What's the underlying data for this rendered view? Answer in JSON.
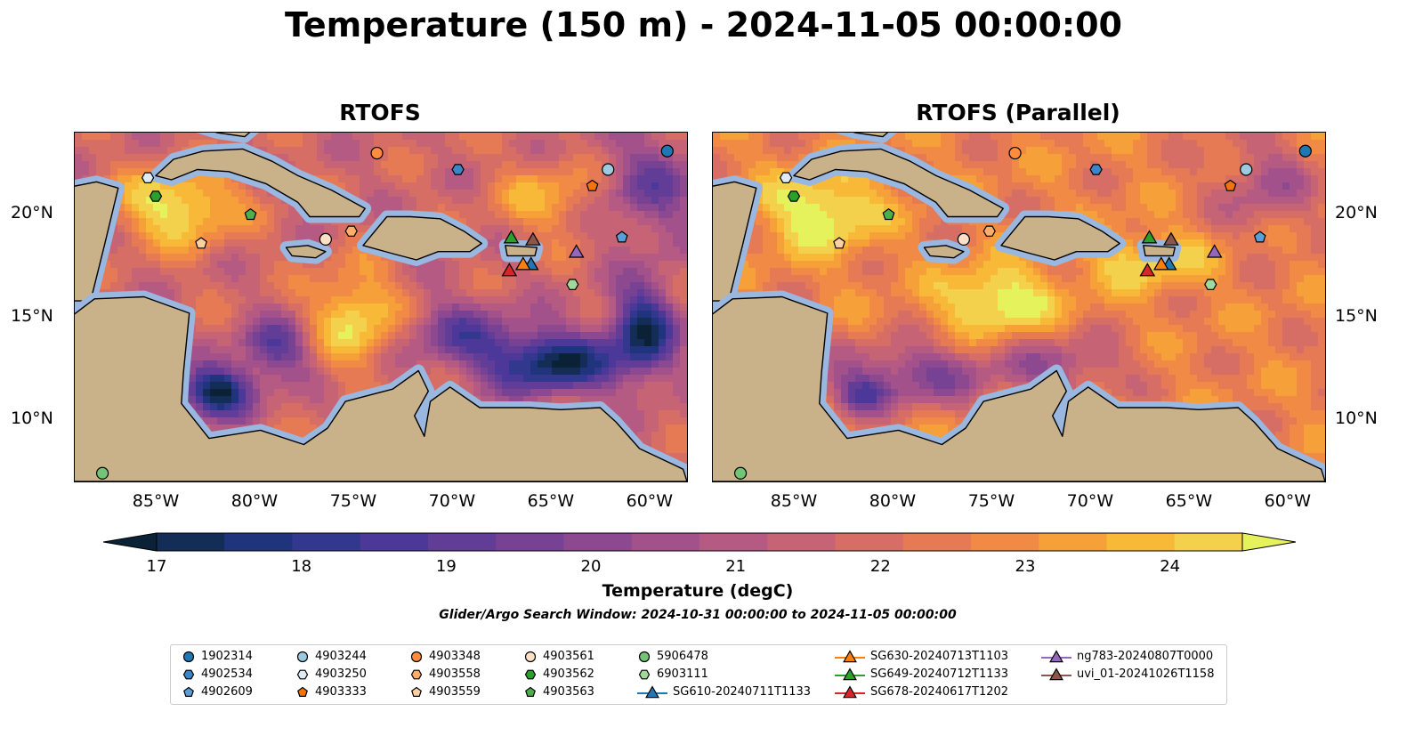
{
  "title": "Temperature (150 m) - 2024-11-05 00:00:00",
  "panels": [
    {
      "title": "RTOFS",
      "variant": "rtofs"
    },
    {
      "title": "RTOFS (Parallel)",
      "variant": "parallel"
    }
  ],
  "map": {
    "lon_range": [
      -89,
      -58
    ],
    "lat_range": [
      7,
      24
    ],
    "lon_ticks": [
      -85,
      -80,
      -75,
      -70,
      -65,
      -60
    ],
    "lon_tick_labels": [
      "85°W",
      "80°W",
      "75°W",
      "70°W",
      "65°W",
      "60°W"
    ],
    "lat_ticks": [
      10,
      15,
      20
    ],
    "lat_tick_labels": [
      "10°N",
      "15°N",
      "20°N"
    ],
    "land_color": "#c9b18a",
    "shelf_color": "#9ab7e0"
  },
  "colorbar": {
    "label": "Temperature (degC)",
    "min": 16.5,
    "max": 24.5,
    "tick_values": [
      17,
      18,
      19,
      20,
      21,
      22,
      23,
      24
    ],
    "tick_labels": [
      "17",
      "18",
      "19",
      "20",
      "21",
      "22",
      "23",
      "24"
    ],
    "colors": [
      "#0b2236",
      "#132d56",
      "#20347e",
      "#33388f",
      "#4c3898",
      "#623d97",
      "#784294",
      "#8d4990",
      "#a2518a",
      "#b55a82",
      "#c66375",
      "#d66e66",
      "#e67a55",
      "#f18a45",
      "#f6a039",
      "#f7b937",
      "#f3d14c",
      "#e6f25b"
    ]
  },
  "search_window": "Glider/Argo Search Window: 2024-10-31 00:00:00 to 2024-11-05 00:00:00",
  "markers": [
    {
      "id": "1902314",
      "shape": "circle",
      "color": "#1f77b4",
      "lon": -59.0,
      "lat": 23.1
    },
    {
      "id": "4902534",
      "shape": "hexagon",
      "color": "#3a86c8",
      "lon": -69.6,
      "lat": 22.2
    },
    {
      "id": "4902609",
      "shape": "pentagon",
      "color": "#5aa0d8",
      "lon": -61.3,
      "lat": 18.9
    },
    {
      "id": "4903244",
      "shape": "circle",
      "color": "#9ecae1",
      "lon": -62.0,
      "lat": 22.2
    },
    {
      "id": "4903250",
      "shape": "hexagon",
      "color": "#deebf7",
      "lon": -85.3,
      "lat": 21.8
    },
    {
      "id": "4903333",
      "shape": "pentagon",
      "color": "#f4730a",
      "lon": -62.8,
      "lat": 21.4
    },
    {
      "id": "4903348",
      "shape": "circle",
      "color": "#fd8d3c",
      "lon": -73.7,
      "lat": 23.0
    },
    {
      "id": "4903558",
      "shape": "hexagon",
      "color": "#fdae6b",
      "lon": -75.0,
      "lat": 19.2
    },
    {
      "id": "4903559",
      "shape": "pentagon",
      "color": "#fdd0a2",
      "lon": -82.6,
      "lat": 18.6
    },
    {
      "id": "4903561",
      "shape": "circle",
      "color": "#fde0c5",
      "lon": -76.3,
      "lat": 18.8
    },
    {
      "id": "4903562",
      "shape": "hexagon",
      "color": "#2ca02c",
      "lon": -84.9,
      "lat": 20.9
    },
    {
      "id": "4903563",
      "shape": "pentagon",
      "color": "#4daf4a",
      "lon": -80.1,
      "lat": 20.0
    },
    {
      "id": "5906478",
      "shape": "circle",
      "color": "#74c476",
      "lon": -87.6,
      "lat": 7.4
    },
    {
      "id": "6903111",
      "shape": "hexagon",
      "color": "#a1d99b",
      "lon": -63.8,
      "lat": 16.6
    },
    {
      "id": "SG610-20240711T1133",
      "shape": "triangle",
      "color": "#1f77b4",
      "lon": -65.9,
      "lat": 17.6
    },
    {
      "id": "SG630-20240713T1103",
      "shape": "triangle",
      "color": "#ff7f0e",
      "lon": -66.3,
      "lat": 17.6
    },
    {
      "id": "SG649-20240712T1133",
      "shape": "triangle",
      "color": "#2ca02c",
      "lon": -66.9,
      "lat": 18.9
    },
    {
      "id": "SG678-20240617T1202",
      "shape": "triangle",
      "color": "#d62728",
      "lon": -67.0,
      "lat": 17.3
    },
    {
      "id": "ng783-20240807T0000",
      "shape": "triangle",
      "color": "#9467bd",
      "lon": -63.6,
      "lat": 18.2
    },
    {
      "id": "uvi_01-20241026T1158",
      "shape": "triangle",
      "color": "#8c564b",
      "lon": -65.8,
      "lat": 18.8
    }
  ],
  "legend": {
    "columns": [
      [
        "1902314",
        "4902534",
        "4902609"
      ],
      [
        "4903244",
        "4903250",
        "4903333"
      ],
      [
        "4903348",
        "4903558",
        "4903559"
      ],
      [
        "4903561",
        "4903562",
        "4903563"
      ],
      [
        "5906478",
        "6903111",
        "SG610-20240711T1133"
      ],
      [
        "SG630-20240713T1103",
        "SG649-20240712T1133",
        "SG678-20240617T1202"
      ],
      [
        "ng783-20240807T0000",
        "uvi_01-20241026T1158"
      ]
    ]
  }
}
